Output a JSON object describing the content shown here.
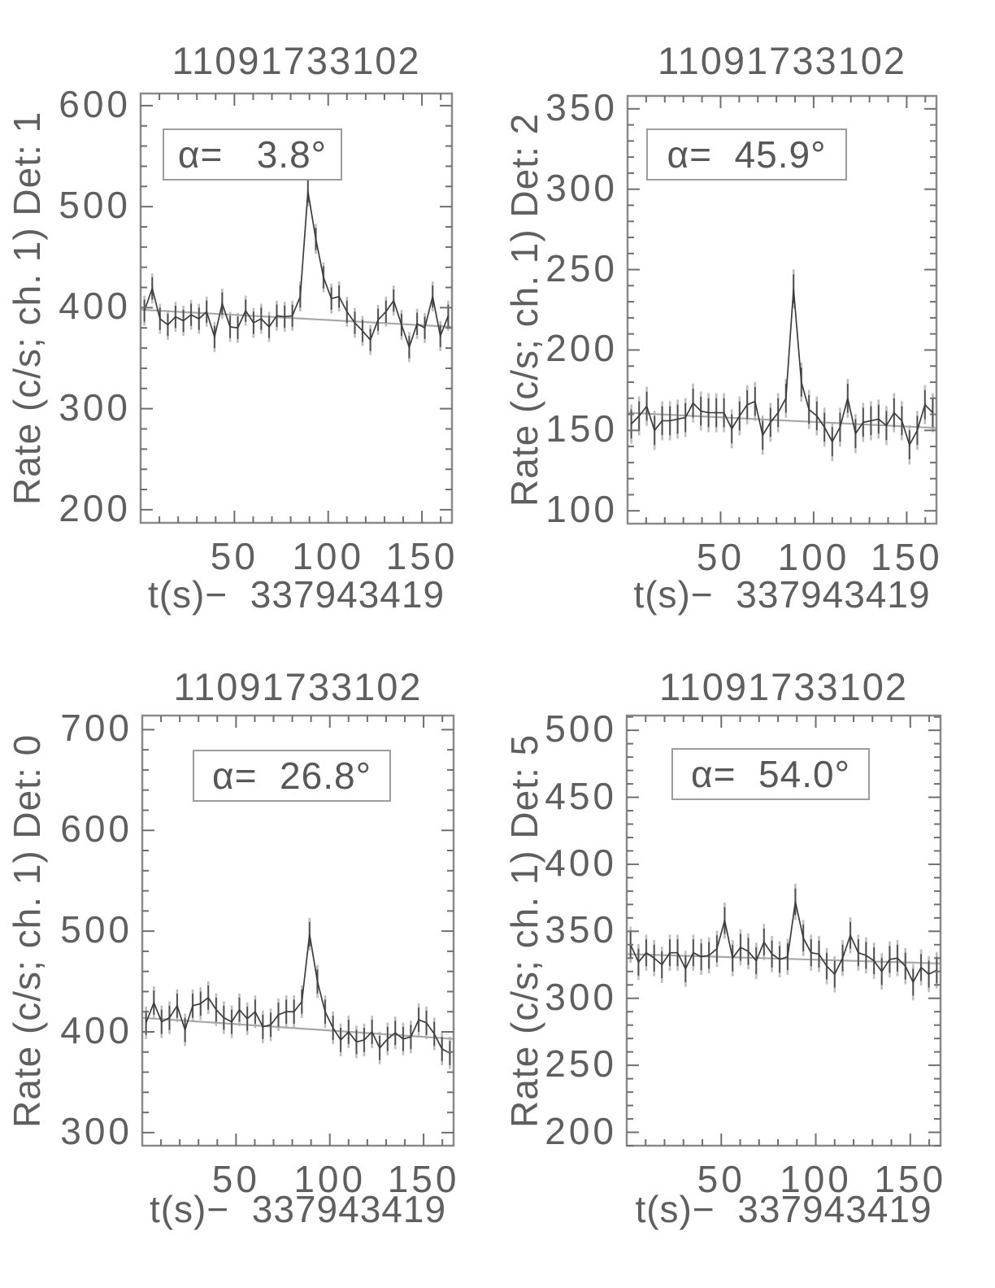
{
  "colors": {
    "background": "#ffffff",
    "frame": "#8a8a8a",
    "tick": "#6f6f6f",
    "text": "#5f5f5f",
    "data_line": "#3c3c3c",
    "trend_line": "#a8a8a8",
    "error_bar": "#4e4e4e",
    "error_bar_light": "#bdbdbd",
    "annotation_border": "#9c9c9c"
  },
  "chart_data": [
    {
      "type": "line",
      "title": "11091733102",
      "ylabel": "Rate (c/s; ch. 1) Det: 1",
      "xlabel": "t(s)−  337943419",
      "alpha_label": "α=   3.8°",
      "detector": "Det: 1",
      "legend_position": "none",
      "grid": false,
      "xlim": [
        0,
        166
      ],
      "ylim": [
        187,
        612
      ],
      "xticks": [
        50,
        100,
        150
      ],
      "yticks": [
        200,
        300,
        400,
        500,
        600
      ],
      "x_minor_step": 10,
      "y_minor_step": 20,
      "yerr": 11,
      "trend": [
        398,
        381
      ],
      "x": [
        2.0,
        6.2,
        10.3,
        14.5,
        18.6,
        22.8,
        26.9,
        31.1,
        35.2,
        39.4,
        43.5,
        47.7,
        51.8,
        56.0,
        60.2,
        64.3,
        68.5,
        72.6,
        76.8,
        80.9,
        85.1,
        89.2,
        93.4,
        97.5,
        101.7,
        105.8,
        110.0,
        114.2,
        118.3,
        122.5,
        126.6,
        130.8,
        134.9,
        139.1,
        143.2,
        147.4,
        151.5,
        155.7,
        159.8,
        164.0
      ],
      "y": [
        397,
        419,
        389,
        383,
        391,
        387,
        393,
        389,
        396,
        371,
        404,
        381,
        380,
        397,
        385,
        389,
        381,
        392,
        391,
        392,
        411,
        515,
        468,
        430,
        409,
        411,
        396,
        385,
        377,
        368,
        388,
        396,
        407,
        383,
        361,
        384,
        380,
        411,
        372,
        392
      ]
    },
    {
      "type": "line",
      "title": "11091733102",
      "ylabel": "Rate (c/s; ch. 1) Det: 2",
      "xlabel": "t(s)−  337943419",
      "alpha_label": "α=  45.9°",
      "detector": "Det: 2",
      "legend_position": "none",
      "grid": false,
      "xlim": [
        0,
        166
      ],
      "ylim": [
        92,
        358
      ],
      "xticks": [
        50,
        100,
        150
      ],
      "yticks": [
        100,
        150,
        200,
        250,
        300,
        350
      ],
      "x_minor_step": 10,
      "y_minor_step": 10,
      "yerr": 9,
      "trend": [
        161,
        151.5
      ],
      "x": [
        2.0,
        6.2,
        10.3,
        14.5,
        18.6,
        22.8,
        26.9,
        31.1,
        35.2,
        39.4,
        43.5,
        47.7,
        51.8,
        56.0,
        60.2,
        64.3,
        68.5,
        72.6,
        76.8,
        80.9,
        85.1,
        89.2,
        93.4,
        97.5,
        101.7,
        105.8,
        110.0,
        114.2,
        118.3,
        122.5,
        126.6,
        130.8,
        134.9,
        139.1,
        143.2,
        147.4,
        151.5,
        155.7,
        159.8,
        164.0
      ],
      "y": [
        154,
        159,
        165,
        150,
        156,
        156,
        157,
        158,
        167,
        162,
        161,
        161,
        161,
        151,
        159,
        166,
        168,
        147,
        155,
        161,
        170,
        238,
        180,
        163,
        159,
        152,
        143,
        152,
        170,
        148,
        155,
        156,
        157,
        153,
        161,
        156,
        141,
        150,
        166,
        161
      ]
    },
    {
      "type": "line",
      "title": "11091733102",
      "ylabel": "Rate (c/s; ch. 1) Det: 0",
      "xlabel": "t(s)−  337943419",
      "alpha_label": "α=  26.8°",
      "detector": "Det: 0",
      "legend_position": "none",
      "grid": false,
      "xlim": [
        0,
        166
      ],
      "ylim": [
        287,
        714
      ],
      "xticks": [
        50,
        100,
        150
      ],
      "yticks": [
        300,
        400,
        500,
        600,
        700
      ],
      "x_minor_step": 10,
      "y_minor_step": 20,
      "yerr": 12,
      "trend": [
        414,
        393
      ],
      "x": [
        2.0,
        6.2,
        10.3,
        14.5,
        18.6,
        22.8,
        26.9,
        31.1,
        35.2,
        39.4,
        43.5,
        47.7,
        51.8,
        56.0,
        60.2,
        64.3,
        68.5,
        72.6,
        76.8,
        80.9,
        85.1,
        89.2,
        93.4,
        97.5,
        101.7,
        105.8,
        110.0,
        114.2,
        118.3,
        122.5,
        126.6,
        130.8,
        134.9,
        139.1,
        143.2,
        147.4,
        151.5,
        155.7,
        159.8,
        164.0
      ],
      "y": [
        409,
        429,
        410,
        414,
        426,
        402,
        426,
        428,
        434,
        422,
        414,
        410,
        422,
        413,
        420,
        405,
        407,
        417,
        420,
        420,
        430,
        497,
        450,
        420,
        404,
        392,
        400,
        390,
        392,
        400,
        384,
        393,
        399,
        393,
        395,
        412,
        409,
        398,
        383,
        379
      ]
    },
    {
      "type": "line",
      "title": "11091733102",
      "ylabel": "Rate (c/s; ch. 1) Det: 5",
      "xlabel": "t(s)−  337943419",
      "alpha_label": "α=  54.0°",
      "detector": "Det: 5",
      "legend_position": "none",
      "grid": false,
      "xlim": [
        0,
        166
      ],
      "ylim": [
        190,
        511
      ],
      "xticks": [
        50,
        100,
        150
      ],
      "yticks": [
        200,
        250,
        300,
        350,
        400,
        450,
        500
      ],
      "x_minor_step": 10,
      "y_minor_step": 10,
      "yerr": 10,
      "trend": [
        333,
        326
      ],
      "x": [
        2.0,
        6.2,
        10.3,
        14.5,
        18.6,
        22.8,
        26.9,
        31.1,
        35.2,
        39.4,
        43.5,
        47.7,
        51.8,
        56.0,
        60.2,
        64.3,
        68.5,
        72.6,
        76.8,
        80.9,
        85.1,
        89.2,
        93.4,
        97.5,
        101.7,
        105.8,
        110.0,
        114.2,
        118.3,
        122.5,
        126.6,
        130.8,
        134.9,
        139.1,
        143.2,
        147.4,
        151.5,
        155.7,
        159.8,
        164.0
      ],
      "y": [
        340,
        327,
        334,
        330,
        325,
        334,
        334,
        322,
        334,
        331,
        332,
        337,
        358,
        330,
        338,
        335,
        328,
        342,
        333,
        329,
        331,
        372,
        345,
        334,
        333,
        324,
        318,
        330,
        347,
        334,
        332,
        328,
        320,
        329,
        330,
        324,
        312,
        323,
        318,
        321
      ]
    }
  ]
}
